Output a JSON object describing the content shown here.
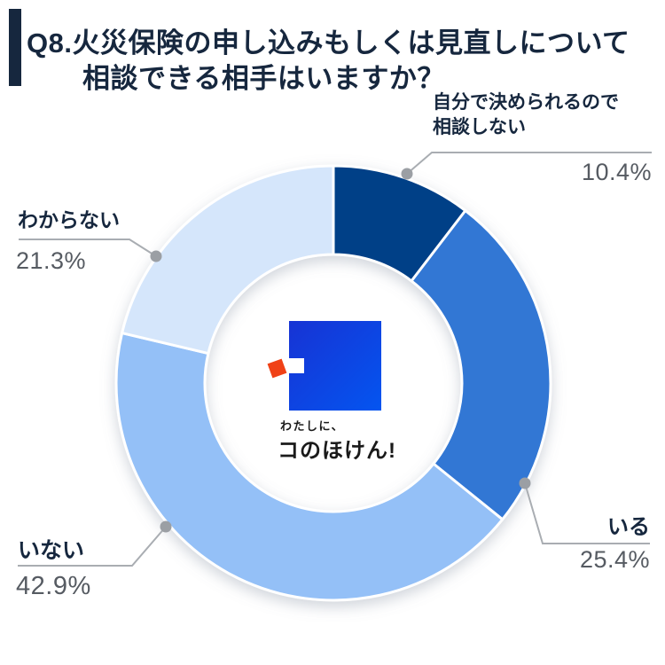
{
  "header": {
    "title_line1": "Q8.火災保険の申し込みもしくは見直しについて",
    "title_line2": "相談できる相手はいますか？",
    "accent_bar_color": "#16273e"
  },
  "chart_data": {
    "type": "pie",
    "subtype": "donut",
    "title": "Q8.火災保険の申し込みもしくは見直しについて相談できる相手はいますか？",
    "categories": [
      "自分で決められるので相談しない",
      "いる",
      "いない",
      "わからない"
    ],
    "values": [
      10.4,
      25.4,
      42.9,
      21.3
    ],
    "unit": "%",
    "colors": [
      "#033f87",
      "#3277d4",
      "#94c0f7",
      "#d5e6fb"
    ],
    "start_angle": "top",
    "direction": "clockwise",
    "separator_color": "#ffffff",
    "legend_position": "external-callouts"
  },
  "callouts": [
    {
      "line1": "自分で決められるので",
      "line2": "相談しない",
      "pct": "10.4%"
    },
    {
      "line1": "いる",
      "pct": "25.4%"
    },
    {
      "line1": "いない",
      "pct": "42.9%"
    },
    {
      "line1": "わからない",
      "pct": "21.3%"
    }
  ],
  "center_logo": {
    "tagline": "わたしに、",
    "brand": "コのほけん!",
    "gradient_start": "#1733d4",
    "gradient_end": "#0455f0",
    "accent_red": "#f04116"
  },
  "text_colors": {
    "label": "#16273e",
    "percent": "#565b62",
    "leader_line": "#a9adb2",
    "leader_dot": "#9b9fa4"
  }
}
